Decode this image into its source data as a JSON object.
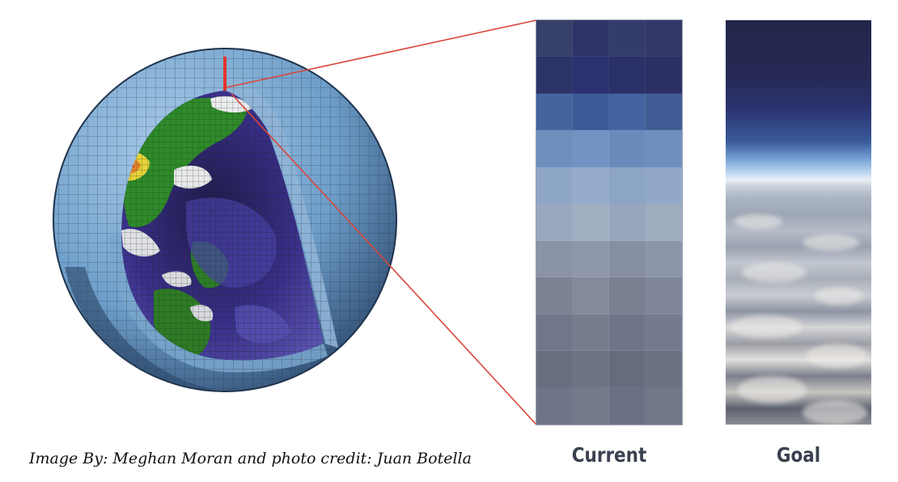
{
  "caption": "Image By: Meghan Moran and photo credit: Juan Botella",
  "panels": {
    "current_label": "Current",
    "goal_label": "Goal"
  },
  "globe": {
    "icon": "climate-model-globe-icon",
    "shell_color": "#6e9ec9",
    "land_color": "#2f8a2a",
    "ice_color": "#e8e8ea",
    "cloud_color": "#3a2f8a",
    "highlight_color": "#d9352a"
  },
  "zoom_lines": {
    "color": "#d9473a"
  },
  "current_grid": {
    "columns": 4,
    "row_colors": [
      [
        "#36406a",
        "#2e3566",
        "#343c6c",
        "#323866"
      ],
      [
        "#2a3468",
        "#2c3170",
        "#2a3068",
        "#2b2f64"
      ],
      [
        "#45649e",
        "#3c5b96",
        "#4563a0",
        "#3f5c94"
      ],
      [
        "#6c8fbe",
        "#7194c2",
        "#6a8cbc",
        "#6f8fbe"
      ],
      [
        "#8ea6c8",
        "#95abcb",
        "#8ca4c6",
        "#92a8c9"
      ],
      [
        "#9aa8bf",
        "#a2aec2",
        "#98a6bd",
        "#9fabbf"
      ],
      [
        "#8a93a8",
        "#8f98ab",
        "#868fa4",
        "#8c95a9"
      ],
      [
        "#7d8293",
        "#858a9a",
        "#7a8091",
        "#81879a"
      ],
      [
        "#70778a",
        "#767c8e",
        "#6e7588",
        "#737a8d"
      ],
      [
        "#686e80",
        "#6d7385",
        "#666c7e",
        "#6b7183"
      ],
      [
        "#6e7588",
        "#72798b",
        "#6a7184",
        "#707789"
      ]
    ]
  }
}
